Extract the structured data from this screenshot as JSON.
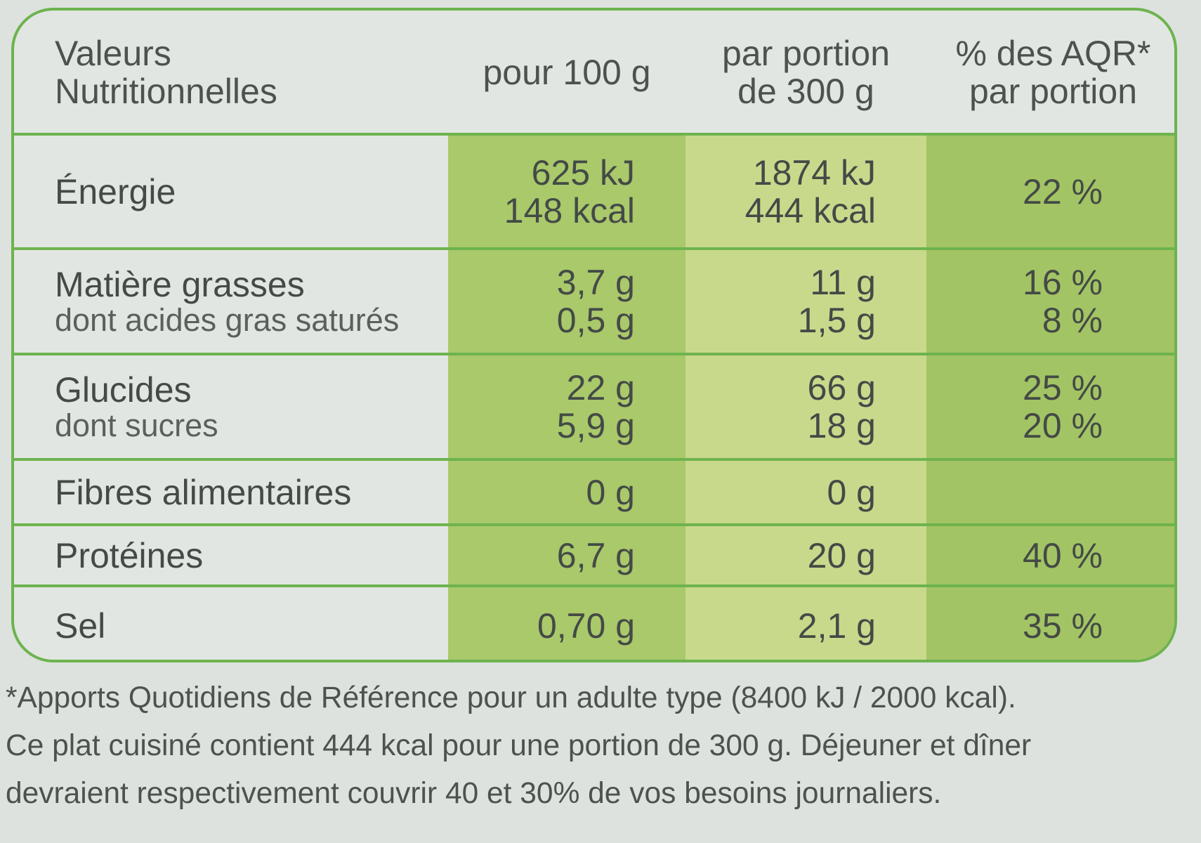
{
  "header": {
    "title": [
      "Valeurs",
      "Nutritionnelles"
    ],
    "columns": [
      [
        "pour 100 g"
      ],
      [
        "par portion",
        "de 300 g"
      ],
      [
        "% des AQR*",
        "par portion"
      ]
    ]
  },
  "rows": [
    {
      "label": [
        "Énergie"
      ],
      "values": [
        [
          "625 kJ",
          "148 kcal"
        ],
        [
          "1874 kJ",
          "444 kcal"
        ],
        [
          "22 %"
        ]
      ]
    },
    {
      "label": [
        "Matière grasses",
        "dont acides gras saturés"
      ],
      "values": [
        [
          "3,7 g",
          "0,5 g"
        ],
        [
          "11 g",
          "1,5 g"
        ],
        [
          "16 %",
          "8 %"
        ]
      ]
    },
    {
      "label": [
        "Glucides",
        "dont sucres"
      ],
      "values": [
        [
          "22 g",
          "5,9 g"
        ],
        [
          "66 g",
          "18 g"
        ],
        [
          "25 %",
          "20 %"
        ]
      ]
    },
    {
      "label": [
        "Fibres alimentaires"
      ],
      "values": [
        [
          "0 g"
        ],
        [
          "0 g"
        ],
        []
      ]
    },
    {
      "label": [
        "Protéines"
      ],
      "values": [
        [
          "6,7 g"
        ],
        [
          "20 g"
        ],
        [
          "40 %"
        ]
      ]
    },
    {
      "label": [
        "Sel"
      ],
      "values": [
        [
          "0,70 g"
        ],
        [
          "2,1 g"
        ],
        [
          "35 %"
        ]
      ]
    }
  ],
  "footnote": [
    "*Apports Quotidiens de Référence pour un adulte type (8400 kJ / 2000 kcal).",
    "Ce plat cuisiné contient 444 kcal pour une portion de 300 g. Déjeuner et dîner",
    "devraient respectivement couvrir 40 et 30% de vos besoins journaliers."
  ]
}
